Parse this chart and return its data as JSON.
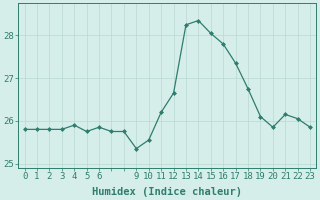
{
  "x": [
    0,
    1,
    2,
    3,
    4,
    5,
    6,
    7,
    8,
    9,
    10,
    11,
    12,
    13,
    14,
    15,
    16,
    17,
    18,
    19,
    20,
    21,
    22,
    23
  ],
  "y": [
    25.8,
    25.8,
    25.8,
    25.8,
    25.9,
    25.75,
    25.85,
    25.75,
    25.75,
    25.35,
    25.55,
    26.2,
    26.65,
    28.25,
    28.35,
    28.05,
    27.8,
    27.35,
    26.75,
    26.1,
    25.85,
    26.15,
    26.05,
    25.85
  ],
  "line_color": "#2e7d6e",
  "marker": "D",
  "marker_size": 2,
  "bg_color": "#d6eeea",
  "grid_color": "#b8d8d2",
  "xlabel": "Humidex (Indice chaleur)",
  "ylim": [
    24.9,
    28.75
  ],
  "xlim": [
    -0.5,
    23.5
  ],
  "yticks": [
    25,
    26,
    27,
    28
  ],
  "xtick_labels": [
    "0",
    "1",
    "2",
    "3",
    "4",
    "5",
    "6",
    "",
    "",
    "9",
    "10",
    "11",
    "12",
    "13",
    "14",
    "15",
    "16",
    "17",
    "18",
    "19",
    "20",
    "21",
    "22",
    "23"
  ],
  "xlabel_fontsize": 7.5,
  "tick_fontsize": 6.5,
  "tick_color": "#2e7d6e",
  "label_color": "#2e7d6e",
  "axis_color": "#2e7d6e",
  "spine_color": "#2e7d6e"
}
